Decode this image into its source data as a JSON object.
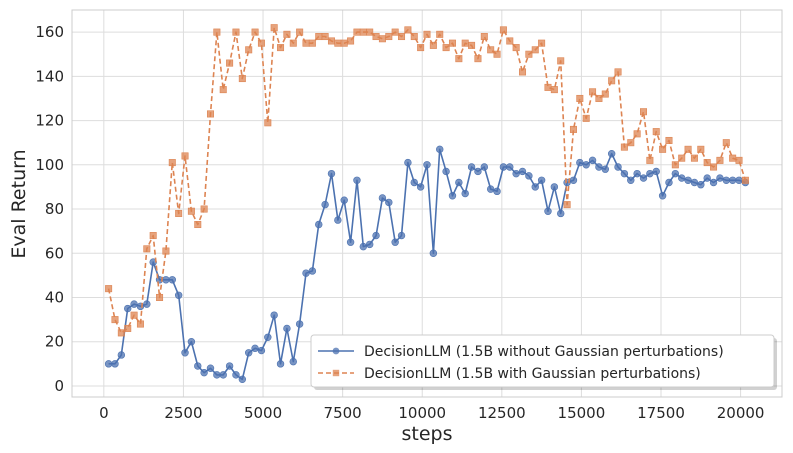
{
  "chart_data": {
    "type": "line",
    "title": "",
    "xlabel": "steps",
    "ylabel": "Eval Return",
    "xlim": [
      -1000,
      21300
    ],
    "ylim": [
      -5,
      170
    ],
    "xticks": [
      0,
      2500,
      5000,
      7500,
      10000,
      12500,
      15000,
      17500,
      20000
    ],
    "xtick_labels": [
      "0",
      "2500",
      "5000",
      "7500",
      "10000",
      "12500",
      "15000",
      "17500",
      "20000"
    ],
    "yticks": [
      0,
      20,
      40,
      60,
      80,
      100,
      120,
      140,
      160
    ],
    "ytick_labels": [
      "0",
      "20",
      "40",
      "60",
      "80",
      "100",
      "120",
      "140",
      "160"
    ],
    "grid": true,
    "legend_position": "lower-right",
    "series": [
      {
        "name": "DecisionLLM (1.5B without Gaussian perturbations)",
        "color": "#4c72b0",
        "linestyle": "solid",
        "marker": "circle",
        "points": [
          [
            150,
            10
          ],
          [
            350,
            10
          ],
          [
            550,
            14
          ],
          [
            750,
            35
          ],
          [
            950,
            37
          ],
          [
            1150,
            36
          ],
          [
            1350,
            37
          ],
          [
            1550,
            56
          ],
          [
            1750,
            48
          ],
          [
            1950,
            48
          ],
          [
            2150,
            48
          ],
          [
            2350,
            41
          ],
          [
            2550,
            15
          ],
          [
            2750,
            20
          ],
          [
            2950,
            9
          ],
          [
            3150,
            6
          ],
          [
            3350,
            8
          ],
          [
            3550,
            5
          ],
          [
            3750,
            5
          ],
          [
            3950,
            9
          ],
          [
            4150,
            5
          ],
          [
            4350,
            3
          ],
          [
            4550,
            15
          ],
          [
            4750,
            17
          ],
          [
            4950,
            16
          ],
          [
            5150,
            22
          ],
          [
            5350,
            32
          ],
          [
            5550,
            10
          ],
          [
            5750,
            26
          ],
          [
            5950,
            11
          ],
          [
            6150,
            28
          ],
          [
            6350,
            51
          ],
          [
            6550,
            52
          ],
          [
            6750,
            73
          ],
          [
            6950,
            82
          ],
          [
            7150,
            96
          ],
          [
            7350,
            75
          ],
          [
            7550,
            84
          ],
          [
            7750,
            65
          ],
          [
            7950,
            93
          ],
          [
            8150,
            63
          ],
          [
            8350,
            64
          ],
          [
            8550,
            68
          ],
          [
            8750,
            85
          ],
          [
            8950,
            83
          ],
          [
            9150,
            65
          ],
          [
            9350,
            68
          ],
          [
            9550,
            101
          ],
          [
            9750,
            92
          ],
          [
            9950,
            90
          ],
          [
            10150,
            100
          ],
          [
            10350,
            60
          ],
          [
            10550,
            107
          ],
          [
            10750,
            97
          ],
          [
            10950,
            86
          ],
          [
            11150,
            92
          ],
          [
            11350,
            87
          ],
          [
            11550,
            99
          ],
          [
            11750,
            97
          ],
          [
            11950,
            99
          ],
          [
            12150,
            89
          ],
          [
            12350,
            88
          ],
          [
            12550,
            99
          ],
          [
            12750,
            99
          ],
          [
            12950,
            96
          ],
          [
            13150,
            97
          ],
          [
            13350,
            95
          ],
          [
            13550,
            90
          ],
          [
            13750,
            93
          ],
          [
            13950,
            79
          ],
          [
            14150,
            90
          ],
          [
            14350,
            78
          ],
          [
            14550,
            92
          ],
          [
            14750,
            93
          ],
          [
            14950,
            101
          ],
          [
            15150,
            100
          ],
          [
            15350,
            102
          ],
          [
            15550,
            99
          ],
          [
            15750,
            98
          ],
          [
            15950,
            105
          ],
          [
            16150,
            99
          ],
          [
            16350,
            96
          ],
          [
            16550,
            93
          ],
          [
            16750,
            96
          ],
          [
            16950,
            94
          ],
          [
            17150,
            96
          ],
          [
            17350,
            97
          ],
          [
            17550,
            86
          ],
          [
            17750,
            92
          ],
          [
            17950,
            96
          ],
          [
            18150,
            94
          ],
          [
            18350,
            93
          ],
          [
            18550,
            92
          ],
          [
            18750,
            91
          ],
          [
            18950,
            94
          ],
          [
            19150,
            92
          ],
          [
            19350,
            94
          ],
          [
            19550,
            93
          ],
          [
            19750,
            93
          ],
          [
            19950,
            93
          ],
          [
            20150,
            92
          ]
        ]
      },
      {
        "name": "DecisionLLM (1.5B with Gaussian perturbations)",
        "color": "#dd8452",
        "linestyle": "dashed",
        "marker": "square",
        "points": [
          [
            150,
            44
          ],
          [
            350,
            30
          ],
          [
            550,
            24
          ],
          [
            750,
            26
          ],
          [
            950,
            32
          ],
          [
            1150,
            28
          ],
          [
            1350,
            62
          ],
          [
            1550,
            68
          ],
          [
            1750,
            40
          ],
          [
            1950,
            61
          ],
          [
            2150,
            101
          ],
          [
            2350,
            78
          ],
          [
            2550,
            104
          ],
          [
            2750,
            79
          ],
          [
            2950,
            73
          ],
          [
            3150,
            80
          ],
          [
            3350,
            123
          ],
          [
            3550,
            160
          ],
          [
            3750,
            134
          ],
          [
            3950,
            146
          ],
          [
            4150,
            160
          ],
          [
            4350,
            139
          ],
          [
            4550,
            152
          ],
          [
            4750,
            160
          ],
          [
            4950,
            155
          ],
          [
            5150,
            119
          ],
          [
            5350,
            162
          ],
          [
            5550,
            153
          ],
          [
            5750,
            159
          ],
          [
            5950,
            155
          ],
          [
            6150,
            160
          ],
          [
            6350,
            155
          ],
          [
            6550,
            155
          ],
          [
            6750,
            158
          ],
          [
            6950,
            158
          ],
          [
            7150,
            156
          ],
          [
            7350,
            155
          ],
          [
            7550,
            155
          ],
          [
            7750,
            156
          ],
          [
            7950,
            160
          ],
          [
            8150,
            160
          ],
          [
            8350,
            160
          ],
          [
            8550,
            158
          ],
          [
            8750,
            157
          ],
          [
            8950,
            158
          ],
          [
            9150,
            160
          ],
          [
            9350,
            158
          ],
          [
            9550,
            161
          ],
          [
            9750,
            158
          ],
          [
            9950,
            153
          ],
          [
            10150,
            159
          ],
          [
            10350,
            154
          ],
          [
            10550,
            159
          ],
          [
            10750,
            153
          ],
          [
            10950,
            155
          ],
          [
            11150,
            148
          ],
          [
            11350,
            155
          ],
          [
            11550,
            154
          ],
          [
            11750,
            148
          ],
          [
            11950,
            158
          ],
          [
            12150,
            152
          ],
          [
            12350,
            150
          ],
          [
            12550,
            161
          ],
          [
            12750,
            156
          ],
          [
            12950,
            153
          ],
          [
            13150,
            142
          ],
          [
            13350,
            150
          ],
          [
            13550,
            152
          ],
          [
            13750,
            155
          ],
          [
            13950,
            135
          ],
          [
            14150,
            134
          ],
          [
            14350,
            147
          ],
          [
            14550,
            82
          ],
          [
            14750,
            116
          ],
          [
            14950,
            130
          ],
          [
            15150,
            121
          ],
          [
            15350,
            133
          ],
          [
            15550,
            130
          ],
          [
            15750,
            132
          ],
          [
            15950,
            138
          ],
          [
            16150,
            142
          ],
          [
            16350,
            108
          ],
          [
            16550,
            110
          ],
          [
            16750,
            114
          ],
          [
            16950,
            124
          ],
          [
            17150,
            102
          ],
          [
            17350,
            115
          ],
          [
            17550,
            107
          ],
          [
            17750,
            111
          ],
          [
            17950,
            100
          ],
          [
            18150,
            103
          ],
          [
            18350,
            107
          ],
          [
            18550,
            103
          ],
          [
            18750,
            107
          ],
          [
            18950,
            101
          ],
          [
            19150,
            99
          ],
          [
            19350,
            102
          ],
          [
            19550,
            110
          ],
          [
            19750,
            103
          ],
          [
            19950,
            102
          ],
          [
            20150,
            93
          ]
        ]
      }
    ]
  }
}
